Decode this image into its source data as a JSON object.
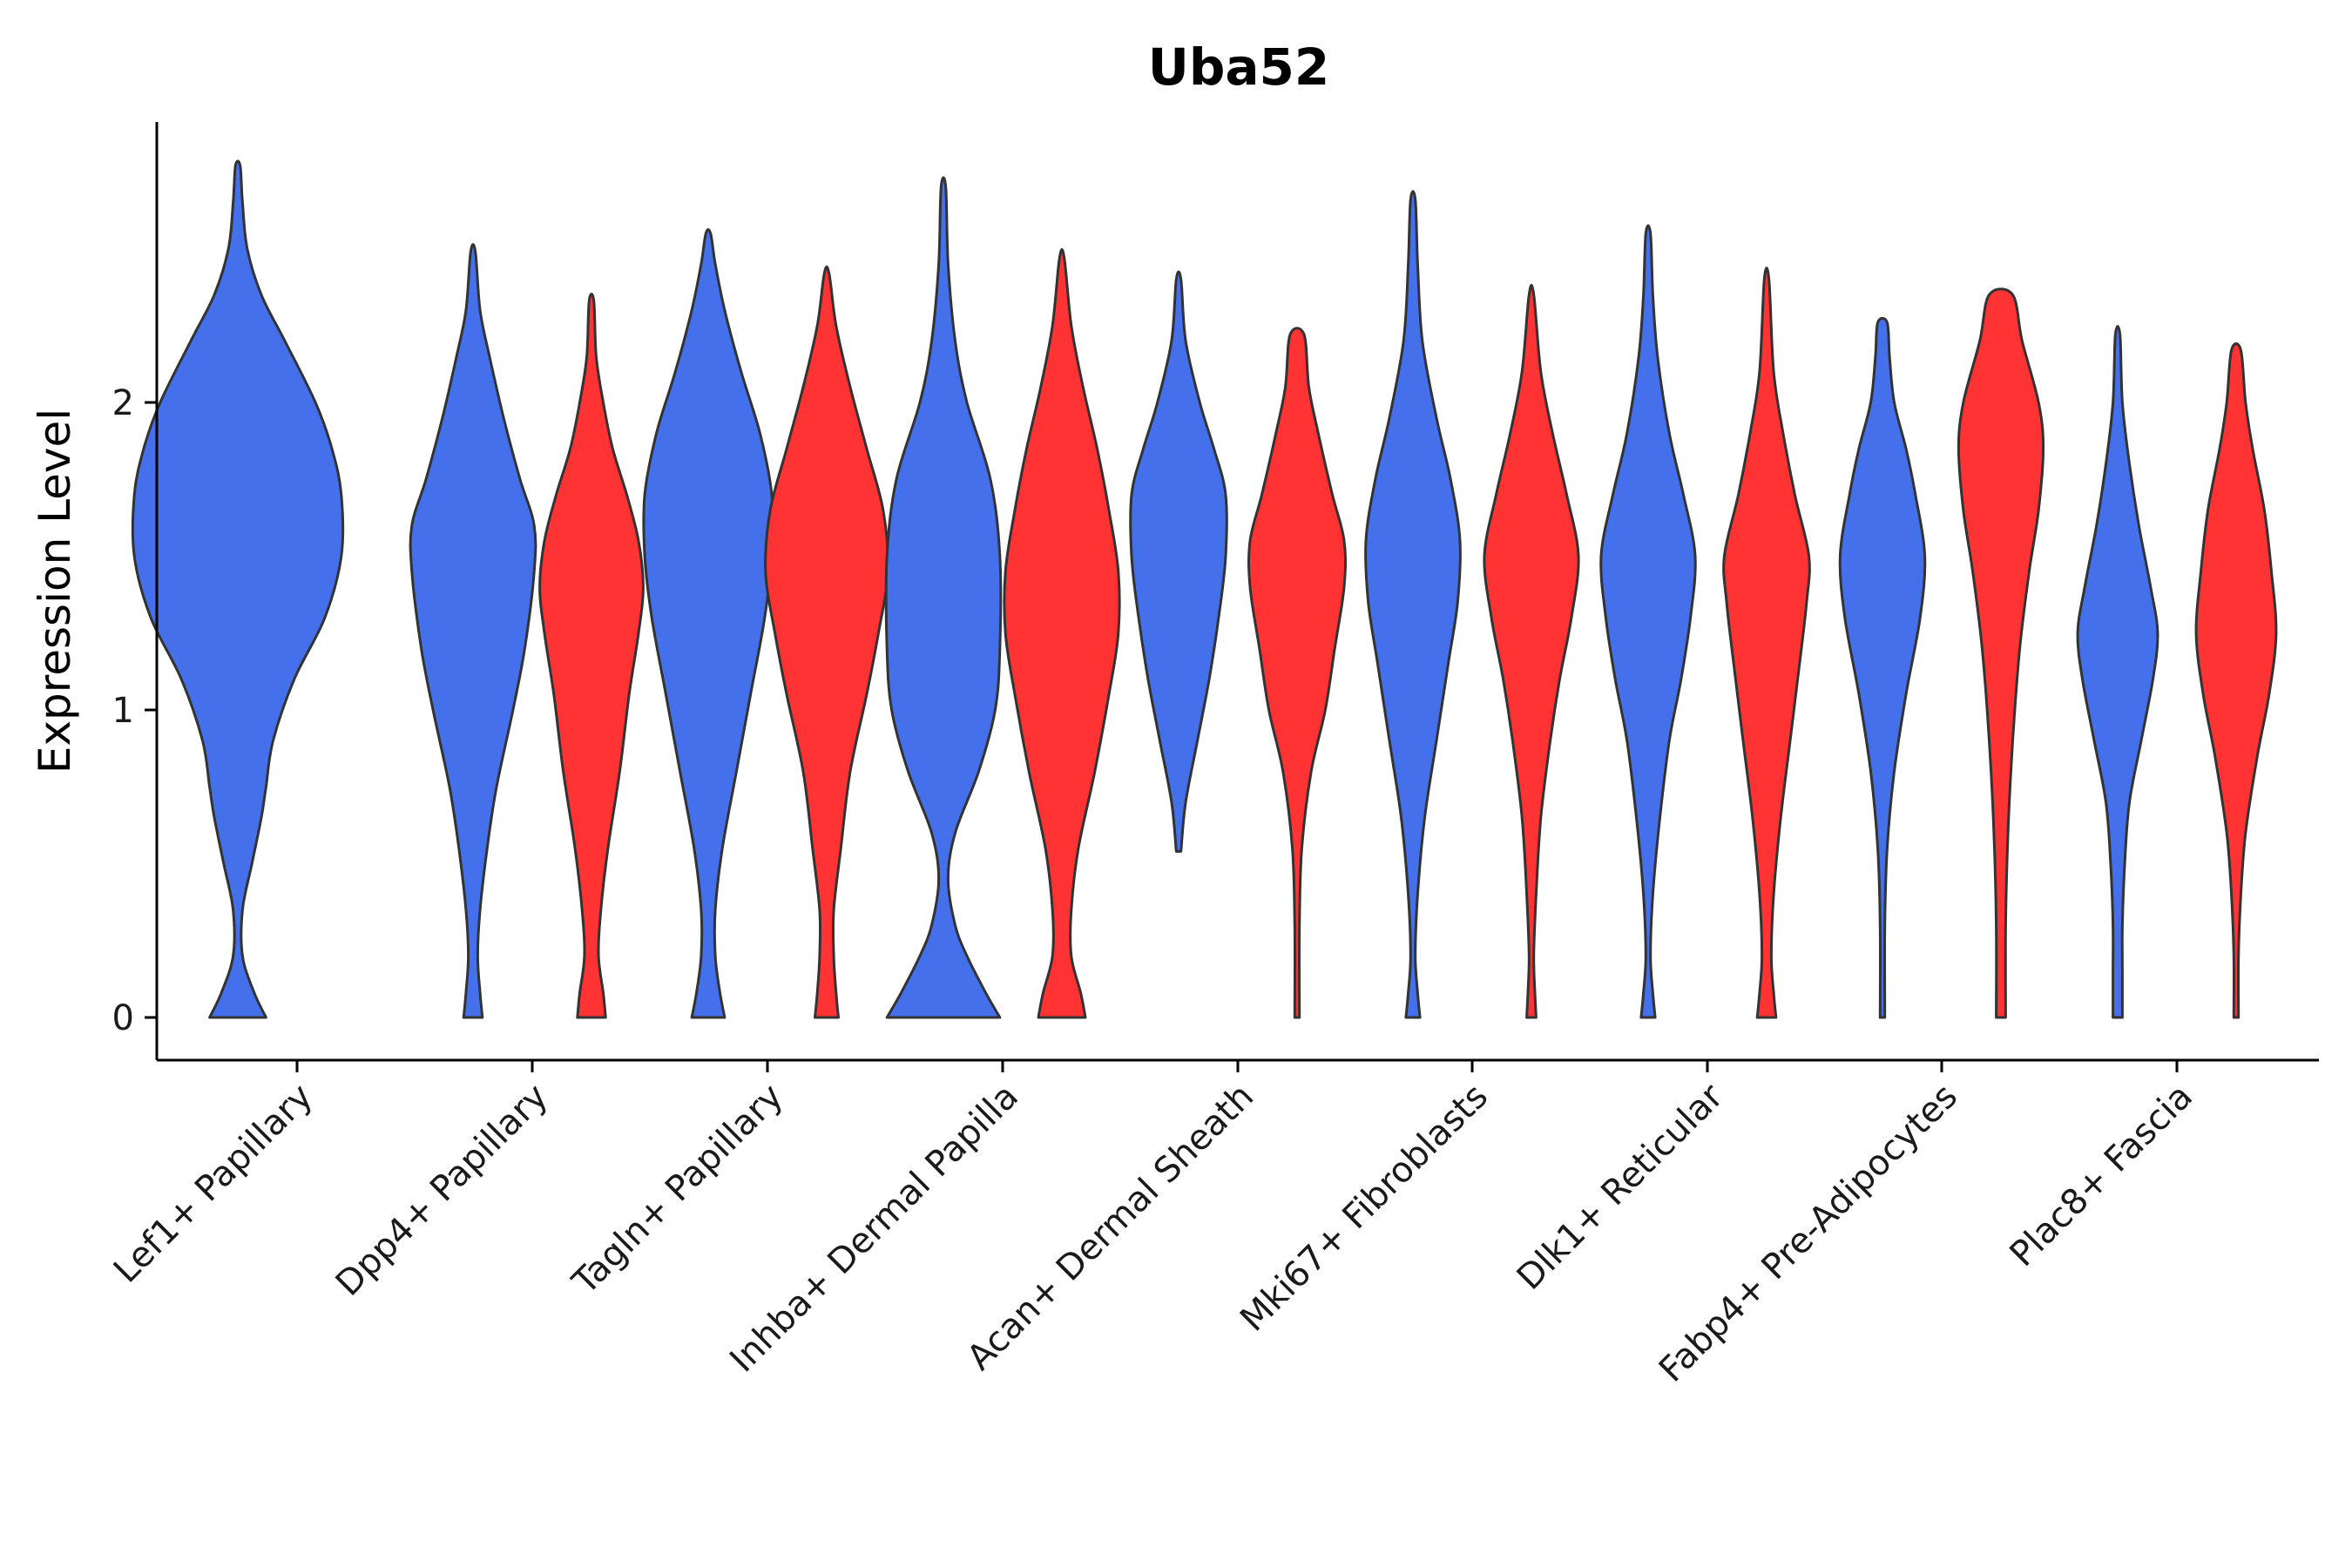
{
  "chart_data": {
    "type": "violin",
    "title": "Uba52",
    "xlabel": "",
    "ylabel": "Expression Level",
    "ylim": [
      -0.14,
      2.9
    ],
    "yticks": [
      0,
      1,
      2
    ],
    "series_colors": {
      "group1": "#4470EB",
      "group2": "#FF3333"
    },
    "categories": [
      "Lef1+ Papillary",
      "Dpp4+ Papillary",
      "Tagln+ Papillary",
      "Inhba+ Dermal Papilla",
      "Acan+ Dermal Sheath",
      "Mki67+ Fibroblasts",
      "Dlk1+ Reticular",
      "Fabp4+ Pre-Adipocytes",
      "Plac8+ Fascia"
    ],
    "violins": [
      {
        "category": "Lef1+ Papillary",
        "group": "group1",
        "min": 0,
        "max": 2.77,
        "profile": [
          [
            0,
            0.12
          ],
          [
            0.08,
            0.07
          ],
          [
            0.2,
            0.02
          ],
          [
            0.35,
            0.02
          ],
          [
            0.5,
            0.06
          ],
          [
            0.65,
            0.1
          ],
          [
            0.75,
            0.12
          ],
          [
            0.9,
            0.15
          ],
          [
            1.1,
            0.24
          ],
          [
            1.3,
            0.37
          ],
          [
            1.5,
            0.44
          ],
          [
            1.7,
            0.44
          ],
          [
            1.85,
            0.4
          ],
          [
            2.0,
            0.33
          ],
          [
            2.2,
            0.2
          ],
          [
            2.35,
            0.1
          ],
          [
            2.5,
            0.04
          ],
          [
            2.65,
            0.02
          ],
          [
            2.77,
            0.01
          ]
        ]
      },
      {
        "category": "Dpp4+ Papillary",
        "group": "group1",
        "min": 0,
        "max": 2.49,
        "profile": [
          [
            0,
            0.04
          ],
          [
            0.08,
            0.03
          ],
          [
            0.2,
            0.02
          ],
          [
            0.35,
            0.03
          ],
          [
            0.55,
            0.06
          ],
          [
            0.75,
            0.1
          ],
          [
            1.0,
            0.17
          ],
          [
            1.2,
            0.22
          ],
          [
            1.45,
            0.26
          ],
          [
            1.6,
            0.26
          ],
          [
            1.75,
            0.2
          ],
          [
            1.95,
            0.13
          ],
          [
            2.15,
            0.07
          ],
          [
            2.3,
            0.03
          ],
          [
            2.49,
            0.01
          ]
        ]
      },
      {
        "category": "Dpp4+ Papillary",
        "group": "group2",
        "min": 0,
        "max": 2.33,
        "profile": [
          [
            0,
            0.06
          ],
          [
            0.08,
            0.05
          ],
          [
            0.2,
            0.03
          ],
          [
            0.35,
            0.04
          ],
          [
            0.55,
            0.07
          ],
          [
            0.8,
            0.12
          ],
          [
            1.05,
            0.16
          ],
          [
            1.25,
            0.2
          ],
          [
            1.4,
            0.22
          ],
          [
            1.55,
            0.2
          ],
          [
            1.7,
            0.15
          ],
          [
            1.85,
            0.09
          ],
          [
            2.0,
            0.05
          ],
          [
            2.15,
            0.02
          ],
          [
            2.33,
            0.01
          ]
        ]
      },
      {
        "category": "Tagln+ Papillary",
        "group": "group1",
        "min": 0,
        "max": 2.55,
        "profile": [
          [
            0,
            0.07
          ],
          [
            0.08,
            0.05
          ],
          [
            0.2,
            0.03
          ],
          [
            0.35,
            0.03
          ],
          [
            0.55,
            0.06
          ],
          [
            0.8,
            0.12
          ],
          [
            1.05,
            0.18
          ],
          [
            1.3,
            0.24
          ],
          [
            1.5,
            0.27
          ],
          [
            1.7,
            0.27
          ],
          [
            1.9,
            0.22
          ],
          [
            2.1,
            0.14
          ],
          [
            2.3,
            0.07
          ],
          [
            2.45,
            0.03
          ],
          [
            2.55,
            0.01
          ]
        ]
      },
      {
        "category": "Tagln+ Papillary",
        "group": "group2",
        "min": 0,
        "max": 2.42,
        "profile": [
          [
            0,
            0.05
          ],
          [
            0.08,
            0.04
          ],
          [
            0.2,
            0.03
          ],
          [
            0.35,
            0.03
          ],
          [
            0.55,
            0.06
          ],
          [
            0.8,
            0.1
          ],
          [
            1.05,
            0.17
          ],
          [
            1.25,
            0.22
          ],
          [
            1.45,
            0.26
          ],
          [
            1.65,
            0.24
          ],
          [
            1.85,
            0.17
          ],
          [
            2.05,
            0.1
          ],
          [
            2.25,
            0.04
          ],
          [
            2.42,
            0.01
          ]
        ]
      },
      {
        "category": "Inhba+ Dermal Papilla",
        "group": "group1",
        "min": 0,
        "max": 2.7,
        "profile": [
          [
            0,
            0.24
          ],
          [
            0.08,
            0.18
          ],
          [
            0.2,
            0.1
          ],
          [
            0.3,
            0.05
          ],
          [
            0.45,
            0.02
          ],
          [
            0.6,
            0.05
          ],
          [
            0.8,
            0.15
          ],
          [
            1.0,
            0.22
          ],
          [
            1.2,
            0.24
          ],
          [
            1.5,
            0.24
          ],
          [
            1.75,
            0.2
          ],
          [
            2.0,
            0.1
          ],
          [
            2.2,
            0.05
          ],
          [
            2.45,
            0.02
          ],
          [
            2.7,
            0.01
          ]
        ]
      },
      {
        "category": "Inhba+ Dermal Papilla",
        "group": "group2",
        "min": 0,
        "max": 2.47,
        "profile": [
          [
            0,
            0.1
          ],
          [
            0.08,
            0.08
          ],
          [
            0.2,
            0.04
          ],
          [
            0.35,
            0.04
          ],
          [
            0.55,
            0.07
          ],
          [
            0.8,
            0.14
          ],
          [
            1.05,
            0.2
          ],
          [
            1.25,
            0.24
          ],
          [
            1.45,
            0.24
          ],
          [
            1.65,
            0.2
          ],
          [
            1.85,
            0.15
          ],
          [
            2.05,
            0.09
          ],
          [
            2.25,
            0.04
          ],
          [
            2.47,
            0.01
          ]
        ]
      },
      {
        "category": "Acan+ Dermal Sheath",
        "group": "group1",
        "min": 0.54,
        "max": 2.4,
        "profile": [
          [
            0.54,
            0.01
          ],
          [
            0.7,
            0.03
          ],
          [
            0.9,
            0.08
          ],
          [
            1.1,
            0.13
          ],
          [
            1.3,
            0.17
          ],
          [
            1.5,
            0.2
          ],
          [
            1.7,
            0.2
          ],
          [
            1.85,
            0.15
          ],
          [
            2.0,
            0.09
          ],
          [
            2.2,
            0.03
          ],
          [
            2.4,
            0.01
          ]
        ]
      },
      {
        "category": "Acan+ Dermal Sheath",
        "group": "group2",
        "min": 0,
        "max": 2.22,
        "profile": [
          [
            0,
            0.01
          ],
          [
            0.3,
            0.01
          ],
          [
            0.55,
            0.02
          ],
          [
            0.8,
            0.06
          ],
          [
            1.0,
            0.12
          ],
          [
            1.2,
            0.16
          ],
          [
            1.4,
            0.2
          ],
          [
            1.55,
            0.2
          ],
          [
            1.7,
            0.15
          ],
          [
            1.9,
            0.09
          ],
          [
            2.05,
            0.05
          ],
          [
            2.22,
            0.03
          ]
        ]
      },
      {
        "category": "Mki67+ Fibroblasts",
        "group": "group1",
        "min": 0,
        "max": 2.66,
        "profile": [
          [
            0,
            0.03
          ],
          [
            0.08,
            0.02
          ],
          [
            0.2,
            0.01
          ],
          [
            0.4,
            0.02
          ],
          [
            0.65,
            0.05
          ],
          [
            0.9,
            0.1
          ],
          [
            1.15,
            0.15
          ],
          [
            1.35,
            0.19
          ],
          [
            1.55,
            0.2
          ],
          [
            1.75,
            0.16
          ],
          [
            1.95,
            0.1
          ],
          [
            2.2,
            0.04
          ],
          [
            2.45,
            0.02
          ],
          [
            2.66,
            0.01
          ]
        ]
      },
      {
        "category": "Mki67+ Fibroblasts",
        "group": "group2",
        "min": 0,
        "max": 2.35,
        "profile": [
          [
            0,
            0.02
          ],
          [
            0.08,
            0.015
          ],
          [
            0.2,
            0.01
          ],
          [
            0.4,
            0.02
          ],
          [
            0.65,
            0.04
          ],
          [
            0.9,
            0.08
          ],
          [
            1.1,
            0.12
          ],
          [
            1.3,
            0.17
          ],
          [
            1.5,
            0.2
          ],
          [
            1.7,
            0.15
          ],
          [
            1.9,
            0.09
          ],
          [
            2.1,
            0.04
          ],
          [
            2.35,
            0.01
          ]
        ]
      },
      {
        "category": "Dlk1+ Reticular",
        "group": "group1",
        "min": 0,
        "max": 2.55,
        "profile": [
          [
            0,
            0.03
          ],
          [
            0.08,
            0.02
          ],
          [
            0.2,
            0.01
          ],
          [
            0.4,
            0.02
          ],
          [
            0.65,
            0.05
          ],
          [
            0.9,
            0.09
          ],
          [
            1.1,
            0.14
          ],
          [
            1.3,
            0.18
          ],
          [
            1.5,
            0.2
          ],
          [
            1.7,
            0.15
          ],
          [
            1.9,
            0.09
          ],
          [
            2.15,
            0.04
          ],
          [
            2.35,
            0.02
          ],
          [
            2.55,
            0.01
          ]
        ]
      },
      {
        "category": "Dlk1+ Reticular",
        "group": "group2",
        "min": 0,
        "max": 2.4,
        "profile": [
          [
            0,
            0.04
          ],
          [
            0.08,
            0.03
          ],
          [
            0.2,
            0.02
          ],
          [
            0.4,
            0.03
          ],
          [
            0.65,
            0.06
          ],
          [
            0.9,
            0.1
          ],
          [
            1.15,
            0.14
          ],
          [
            1.35,
            0.17
          ],
          [
            1.5,
            0.18
          ],
          [
            1.7,
            0.12
          ],
          [
            1.9,
            0.07
          ],
          [
            2.1,
            0.03
          ],
          [
            2.4,
            0.01
          ]
        ]
      },
      {
        "category": "Fabp4+ Pre-Adipocytes",
        "group": "group1",
        "min": 0,
        "max": 2.26,
        "profile": [
          [
            0,
            0.01
          ],
          [
            0.3,
            0.01
          ],
          [
            0.55,
            0.02
          ],
          [
            0.8,
            0.05
          ],
          [
            1.05,
            0.1
          ],
          [
            1.3,
            0.16
          ],
          [
            1.5,
            0.18
          ],
          [
            1.7,
            0.14
          ],
          [
            1.85,
            0.1
          ],
          [
            2.0,
            0.05
          ],
          [
            2.15,
            0.03
          ],
          [
            2.26,
            0.02
          ]
        ]
      },
      {
        "category": "Fabp4+ Pre-Adipocytes",
        "group": "group2",
        "min": 0,
        "max": 2.35,
        "profile": [
          [
            0,
            0.02
          ],
          [
            0.3,
            0.02
          ],
          [
            0.6,
            0.03
          ],
          [
            0.9,
            0.05
          ],
          [
            1.2,
            0.08
          ],
          [
            1.45,
            0.12
          ],
          [
            1.65,
            0.16
          ],
          [
            1.85,
            0.18
          ],
          [
            2.0,
            0.16
          ],
          [
            2.2,
            0.09
          ],
          [
            2.35,
            0.05
          ]
        ]
      },
      {
        "category": "Plac8+ Fascia",
        "group": "group1",
        "min": 0,
        "max": 2.22,
        "profile": [
          [
            0,
            0.02
          ],
          [
            0.15,
            0.02
          ],
          [
            0.3,
            0.02
          ],
          [
            0.5,
            0.03
          ],
          [
            0.7,
            0.05
          ],
          [
            0.9,
            0.1
          ],
          [
            1.1,
            0.15
          ],
          [
            1.25,
            0.17
          ],
          [
            1.4,
            0.14
          ],
          [
            1.6,
            0.09
          ],
          [
            1.8,
            0.05
          ],
          [
            2.0,
            0.02
          ],
          [
            2.22,
            0.01
          ]
        ]
      },
      {
        "category": "Plac8+ Fascia",
        "group": "group2",
        "min": 0,
        "max": 2.17,
        "profile": [
          [
            0,
            0.01
          ],
          [
            0.2,
            0.01
          ],
          [
            0.4,
            0.02
          ],
          [
            0.6,
            0.04
          ],
          [
            0.85,
            0.09
          ],
          [
            1.05,
            0.14
          ],
          [
            1.25,
            0.17
          ],
          [
            1.45,
            0.15
          ],
          [
            1.65,
            0.12
          ],
          [
            1.85,
            0.07
          ],
          [
            2.0,
            0.04
          ],
          [
            2.17,
            0.02
          ]
        ]
      }
    ]
  }
}
